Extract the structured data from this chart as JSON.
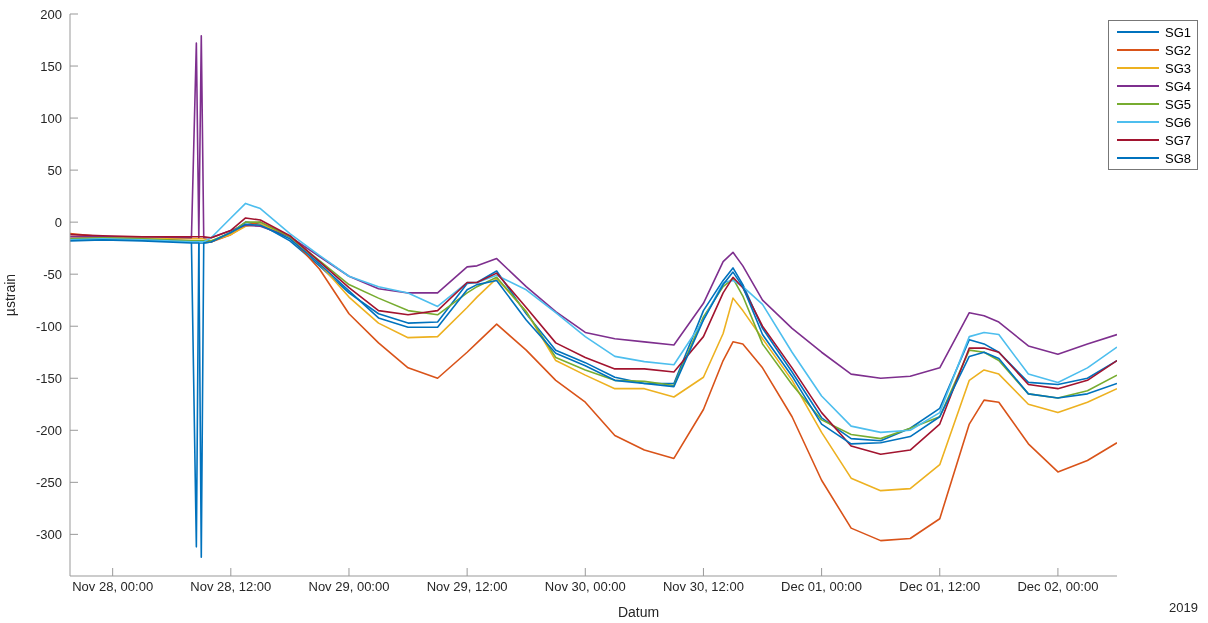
{
  "chart_data": {
    "type": "line",
    "xlabel": "Datum",
    "ylabel": "µstrain",
    "annotations": [
      "2019"
    ],
    "legend": "top right",
    "x": [
      "2019-11-27T19:40",
      "2019-11-27T23:00",
      "2019-11-28T03:00",
      "2019-11-28T08:00",
      "2019-11-28T08:30",
      "2019-11-28T08:45",
      "2019-11-28T09:00",
      "2019-11-28T09:15",
      "2019-11-28T10:00",
      "2019-11-28T12:00",
      "2019-11-28T13:30",
      "2019-11-28T15:00",
      "2019-11-28T18:00",
      "2019-11-28T21:00",
      "2019-11-29T00:00",
      "2019-11-29T03:00",
      "2019-11-29T06:00",
      "2019-11-29T09:00",
      "2019-11-29T12:00",
      "2019-11-29T13:00",
      "2019-11-29T15:00",
      "2019-11-29T18:00",
      "2019-11-29T21:00",
      "2019-11-30T00:00",
      "2019-11-30T03:00",
      "2019-11-30T06:00",
      "2019-11-30T09:00",
      "2019-11-30T12:00",
      "2019-11-30T14:00",
      "2019-11-30T15:00",
      "2019-11-30T16:00",
      "2019-11-30T18:00",
      "2019-11-30T21:00",
      "2019-12-01T00:00",
      "2019-12-01T03:00",
      "2019-12-01T06:00",
      "2019-12-01T09:00",
      "2019-12-01T12:00",
      "2019-12-01T15:00",
      "2019-12-01T16:30",
      "2019-12-01T18:00",
      "2019-12-01T21:00",
      "2019-12-02T00:00",
      "2019-12-02T03:00",
      "2019-12-02T06:00"
    ],
    "xlim": [
      "2019-11-27T19:40",
      "2019-12-02T06:00"
    ],
    "xticks": [
      {
        "value": "2019-11-28T00:00",
        "label": "Nov 28, 00:00"
      },
      {
        "value": "2019-11-28T12:00",
        "label": "Nov 28, 12:00"
      },
      {
        "value": "2019-11-29T00:00",
        "label": "Nov 29, 00:00"
      },
      {
        "value": "2019-11-29T12:00",
        "label": "Nov 29, 12:00"
      },
      {
        "value": "2019-11-30T00:00",
        "label": "Nov 30, 00:00"
      },
      {
        "value": "2019-11-30T12:00",
        "label": "Nov 30, 12:00"
      },
      {
        "value": "2019-12-01T00:00",
        "label": "Dec 01, 00:00"
      },
      {
        "value": "2019-12-01T12:00",
        "label": "Dec 01, 12:00"
      },
      {
        "value": "2019-12-02T00:00",
        "label": "Dec 02, 00:00"
      }
    ],
    "ylim": [
      -340,
      200
    ],
    "yticks": [
      -300,
      -250,
      -200,
      -150,
      -100,
      -50,
      0,
      50,
      100,
      150,
      200
    ],
    "series": [
      {
        "name": "SG1",
        "color": "#0072bd",
        "values": [
          -17,
          -16,
          -17,
          -19,
          -312,
          -20,
          -20,
          -20,
          -19,
          -10,
          0,
          -2,
          -18,
          -42,
          -68,
          -88,
          -97,
          -96,
          -59,
          -58,
          -47,
          -88,
          -123,
          -135,
          -149,
          -155,
          -155,
          -85,
          -56,
          -44,
          -60,
          -102,
          -144,
          -188,
          -208,
          -210,
          -198,
          -179,
          -113,
          -117,
          -125,
          -154,
          -156,
          -150,
          -133
        ]
      },
      {
        "name": "SG2",
        "color": "#d95319",
        "values": [
          -11,
          -14,
          -16,
          -18,
          -18,
          -18,
          -18,
          -18,
          -19,
          -12,
          -3,
          0,
          -14,
          -45,
          -88,
          -116,
          -140,
          -150,
          -125,
          -116,
          -98,
          -123,
          -152,
          -173,
          -205,
          -219,
          -227,
          -180,
          -133,
          -115,
          -117,
          -140,
          -187,
          -248,
          -294,
          -306,
          -304,
          -285,
          -194,
          -171,
          -173,
          -213,
          -240,
          -229,
          -212
        ]
      },
      {
        "name": "SG3",
        "color": "#edb120",
        "values": [
          -14,
          -15,
          -15,
          -16,
          -16,
          -16,
          -16,
          -16,
          -18,
          -12,
          -4,
          -2,
          -14,
          -40,
          -72,
          -97,
          -111,
          -110,
          -82,
          -72,
          -54,
          -86,
          -133,
          -147,
          -160,
          -160,
          -168,
          -149,
          -107,
          -73,
          -85,
          -112,
          -152,
          -202,
          -246,
          -258,
          -256,
          -233,
          -152,
          -142,
          -146,
          -175,
          -183,
          -173,
          -160
        ]
      },
      {
        "name": "SG4",
        "color": "#7e2f8e",
        "values": [
          -14,
          -14,
          -14,
          -15,
          172,
          -15,
          179,
          -15,
          -15,
          -8,
          -3,
          -4,
          -14,
          -33,
          -52,
          -64,
          -68,
          -68,
          -43,
          -42,
          -35,
          -62,
          -86,
          -106,
          -112,
          -115,
          -118,
          -78,
          -38,
          -29,
          -42,
          -75,
          -102,
          -125,
          -146,
          -150,
          -148,
          -140,
          -87,
          -90,
          -96,
          -119,
          -127,
          -117,
          -108
        ]
      },
      {
        "name": "SG5",
        "color": "#77ac30",
        "values": [
          -16,
          -15,
          -16,
          -18,
          -18,
          -18,
          -18,
          -18,
          -18,
          -10,
          0,
          0,
          -14,
          -37,
          -60,
          -73,
          -85,
          -89,
          -68,
          -62,
          -53,
          -86,
          -130,
          -142,
          -152,
          -153,
          -157,
          -91,
          -62,
          -54,
          -71,
          -117,
          -156,
          -190,
          -204,
          -208,
          -198,
          -187,
          -123,
          -125,
          -133,
          -165,
          -169,
          -162,
          -147
        ]
      },
      {
        "name": "SG6",
        "color": "#4dbeee",
        "values": [
          -17,
          -16,
          -17,
          -19,
          -19,
          -19,
          -19,
          -19,
          -15,
          4,
          18,
          13,
          -11,
          -32,
          -52,
          -62,
          -68,
          -81,
          -58,
          -58,
          -51,
          -65,
          -87,
          -110,
          -129,
          -134,
          -137,
          -94,
          -58,
          -56,
          -62,
          -79,
          -125,
          -167,
          -196,
          -202,
          -200,
          -183,
          -110,
          -106,
          -108,
          -146,
          -154,
          -140,
          -120
        ]
      },
      {
        "name": "SG7",
        "color": "#a2142f",
        "values": [
          -12,
          -13,
          -14,
          -14,
          -14,
          -14,
          -14,
          -14,
          -15,
          -8,
          4,
          2,
          -13,
          -38,
          -63,
          -85,
          -89,
          -85,
          -58,
          -58,
          -49,
          -82,
          -116,
          -130,
          -141,
          -141,
          -144,
          -110,
          -68,
          -53,
          -63,
          -100,
          -140,
          -183,
          -215,
          -223,
          -219,
          -194,
          -121,
          -121,
          -125,
          -156,
          -160,
          -152,
          -133
        ]
      },
      {
        "name": "SG8",
        "color": "#0072bd",
        "values": [
          -18,
          -17,
          -18,
          -20,
          -20,
          -20,
          -322,
          -20,
          -19,
          -10,
          -2,
          -3,
          -16,
          -40,
          -66,
          -92,
          -101,
          -101,
          -65,
          -60,
          -56,
          -94,
          -126,
          -138,
          -152,
          -155,
          -158,
          -94,
          -60,
          -48,
          -62,
          -108,
          -148,
          -194,
          -213,
          -212,
          -206,
          -187,
          -129,
          -125,
          -131,
          -165,
          -169,
          -165,
          -155
        ]
      }
    ]
  }
}
